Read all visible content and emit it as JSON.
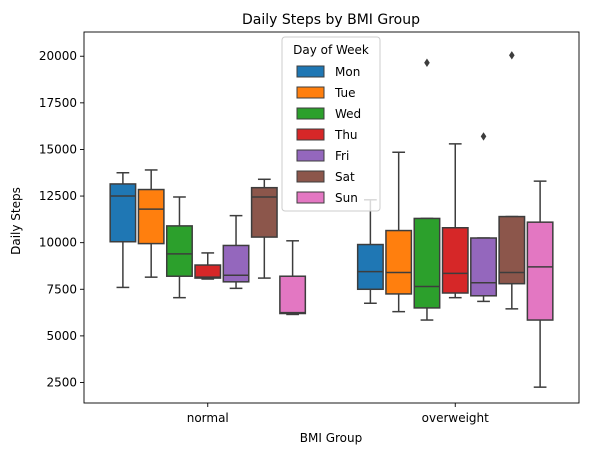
{
  "chart_data": {
    "type": "box",
    "title": "Daily Steps by BMI Group",
    "xlabel": "BMI Group",
    "ylabel": "Daily Steps",
    "ylim": [
      1400,
      21300
    ],
    "yticks": [
      2500,
      5000,
      7500,
      10000,
      12500,
      15000,
      17500,
      20000
    ],
    "categories": [
      "normal",
      "overweight"
    ],
    "legend": {
      "title": "Day of Week",
      "position": "top-center"
    },
    "series": [
      {
        "name": "Mon",
        "color": "#1f77b4",
        "boxes": [
          {
            "whislo": 7600,
            "q1": 10050,
            "med": 12500,
            "q3": 13150,
            "whishi": 13750,
            "fliers": []
          },
          {
            "whislo": 6750,
            "q1": 7500,
            "med": 8450,
            "q3": 9900,
            "whishi": 12300,
            "fliers": []
          }
        ]
      },
      {
        "name": "Tue",
        "color": "#ff7f0e",
        "boxes": [
          {
            "whislo": 8150,
            "q1": 9950,
            "med": 11800,
            "q3": 12850,
            "whishi": 13900,
            "fliers": []
          },
          {
            "whislo": 6300,
            "q1": 7250,
            "med": 8400,
            "q3": 10650,
            "whishi": 14850,
            "fliers": []
          }
        ]
      },
      {
        "name": "Wed",
        "color": "#2ca02c",
        "boxes": [
          {
            "whislo": 7050,
            "q1": 8200,
            "med": 9400,
            "q3": 10900,
            "whishi": 12450,
            "fliers": []
          },
          {
            "whislo": 5850,
            "q1": 6500,
            "med": 7650,
            "q3": 11300,
            "whishi": 11300,
            "fliers": [
              19650
            ]
          }
        ]
      },
      {
        "name": "Thu",
        "color": "#d62728",
        "boxes": [
          {
            "whislo": 8050,
            "q1": 8100,
            "med": 8150,
            "q3": 8800,
            "whishi": 9450,
            "fliers": []
          },
          {
            "whislo": 7050,
            "q1": 7300,
            "med": 8350,
            "q3": 10800,
            "whishi": 15300,
            "fliers": []
          }
        ]
      },
      {
        "name": "Fri",
        "color": "#9467bd",
        "boxes": [
          {
            "whislo": 7550,
            "q1": 7900,
            "med": 8250,
            "q3": 9850,
            "whishi": 11450,
            "fliers": []
          },
          {
            "whislo": 6850,
            "q1": 7150,
            "med": 7850,
            "q3": 10250,
            "whishi": 10250,
            "fliers": [
              15700
            ]
          }
        ]
      },
      {
        "name": "Sat",
        "color": "#8c564b",
        "boxes": [
          {
            "whislo": 8100,
            "q1": 10300,
            "med": 12450,
            "q3": 12950,
            "whishi": 13400,
            "fliers": []
          },
          {
            "whislo": 6450,
            "q1": 7800,
            "med": 8400,
            "q3": 11400,
            "whishi": 11400,
            "fliers": [
              20050
            ]
          }
        ]
      },
      {
        "name": "Sun",
        "color": "#e377c2",
        "boxes": [
          {
            "whislo": 6150,
            "q1": 6200,
            "med": 6250,
            "q3": 8200,
            "whishi": 10100,
            "fliers": []
          },
          {
            "whislo": 2250,
            "q1": 5850,
            "med": 8700,
            "q3": 11100,
            "whishi": 13300,
            "fliers": []
          }
        ]
      }
    ]
  }
}
